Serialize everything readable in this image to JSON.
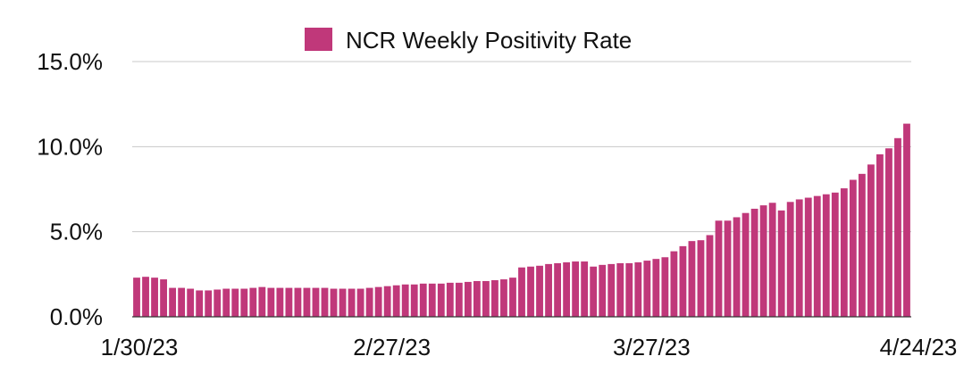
{
  "chart_data": {
    "type": "bar",
    "title": "",
    "xlabel": "",
    "ylabel": "",
    "legend": {
      "position": "top",
      "entries": [
        "NCR Weekly Positivity Rate"
      ]
    },
    "grid": true,
    "ylim": [
      0,
      15
    ],
    "y_ticks": [
      "0.0%",
      "5.0%",
      "10.0%",
      "15.0%"
    ],
    "x_tick_labels": [
      "1/30/23",
      "2/27/23",
      "3/27/23",
      "4/24/23"
    ],
    "x_range": [
      "1/30/23",
      "4/24/23"
    ],
    "colors": {
      "series": "#C0387A",
      "grid": "#C8C8C8"
    },
    "series": [
      {
        "name": "NCR Weekly Positivity Rate",
        "unit": "%",
        "values": [
          2.3,
          2.35,
          2.3,
          2.2,
          1.7,
          1.7,
          1.65,
          1.55,
          1.55,
          1.6,
          1.65,
          1.65,
          1.65,
          1.7,
          1.75,
          1.7,
          1.7,
          1.7,
          1.7,
          1.7,
          1.7,
          1.7,
          1.65,
          1.65,
          1.65,
          1.65,
          1.7,
          1.75,
          1.8,
          1.85,
          1.9,
          1.9,
          1.95,
          1.95,
          1.95,
          2.0,
          2.0,
          2.05,
          2.1,
          2.1,
          2.15,
          2.2,
          2.3,
          2.9,
          2.95,
          3.0,
          3.1,
          3.15,
          3.2,
          3.25,
          3.25,
          2.95,
          3.05,
          3.1,
          3.15,
          3.15,
          3.2,
          3.3,
          3.4,
          3.5,
          3.85,
          4.15,
          4.45,
          4.5,
          4.8,
          5.65,
          5.65,
          5.85,
          6.1,
          6.35,
          6.55,
          6.7,
          6.25,
          6.75,
          6.9,
          7.0,
          7.1,
          7.2,
          7.3,
          7.55,
          8.05,
          8.4,
          8.95,
          9.55,
          9.9,
          10.5,
          11.35
        ]
      }
    ]
  }
}
